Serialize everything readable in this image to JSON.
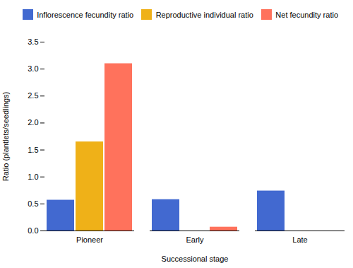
{
  "chart_data": {
    "type": "bar",
    "categories": [
      "Pioneer",
      "Early",
      "Late"
    ],
    "series": [
      {
        "name": "Inflorescence fecundity ratio",
        "values": [
          0.57,
          0.58,
          0.74
        ]
      },
      {
        "name": "Reproductive individual ratio",
        "values": [
          1.65,
          0.0,
          0.0
        ]
      },
      {
        "name": "Net fecundity ratio",
        "values": [
          3.1,
          0.07,
          0.0
        ]
      }
    ],
    "xlabel": "Successional stage",
    "ylabel": "Ratio (plantlets/seedlings)",
    "ylim": [
      0,
      3.5
    ],
    "yticks": [
      {
        "value": 0,
        "label": "0.0"
      },
      0.5,
      {
        "value": 1,
        "label": "1.0"
      },
      1.5,
      {
        "value": 2,
        "label": "2.0"
      },
      2.5,
      {
        "value": 3,
        "label": "3.0"
      },
      3.5
    ],
    "grid": false,
    "legend": "upper right"
  }
}
